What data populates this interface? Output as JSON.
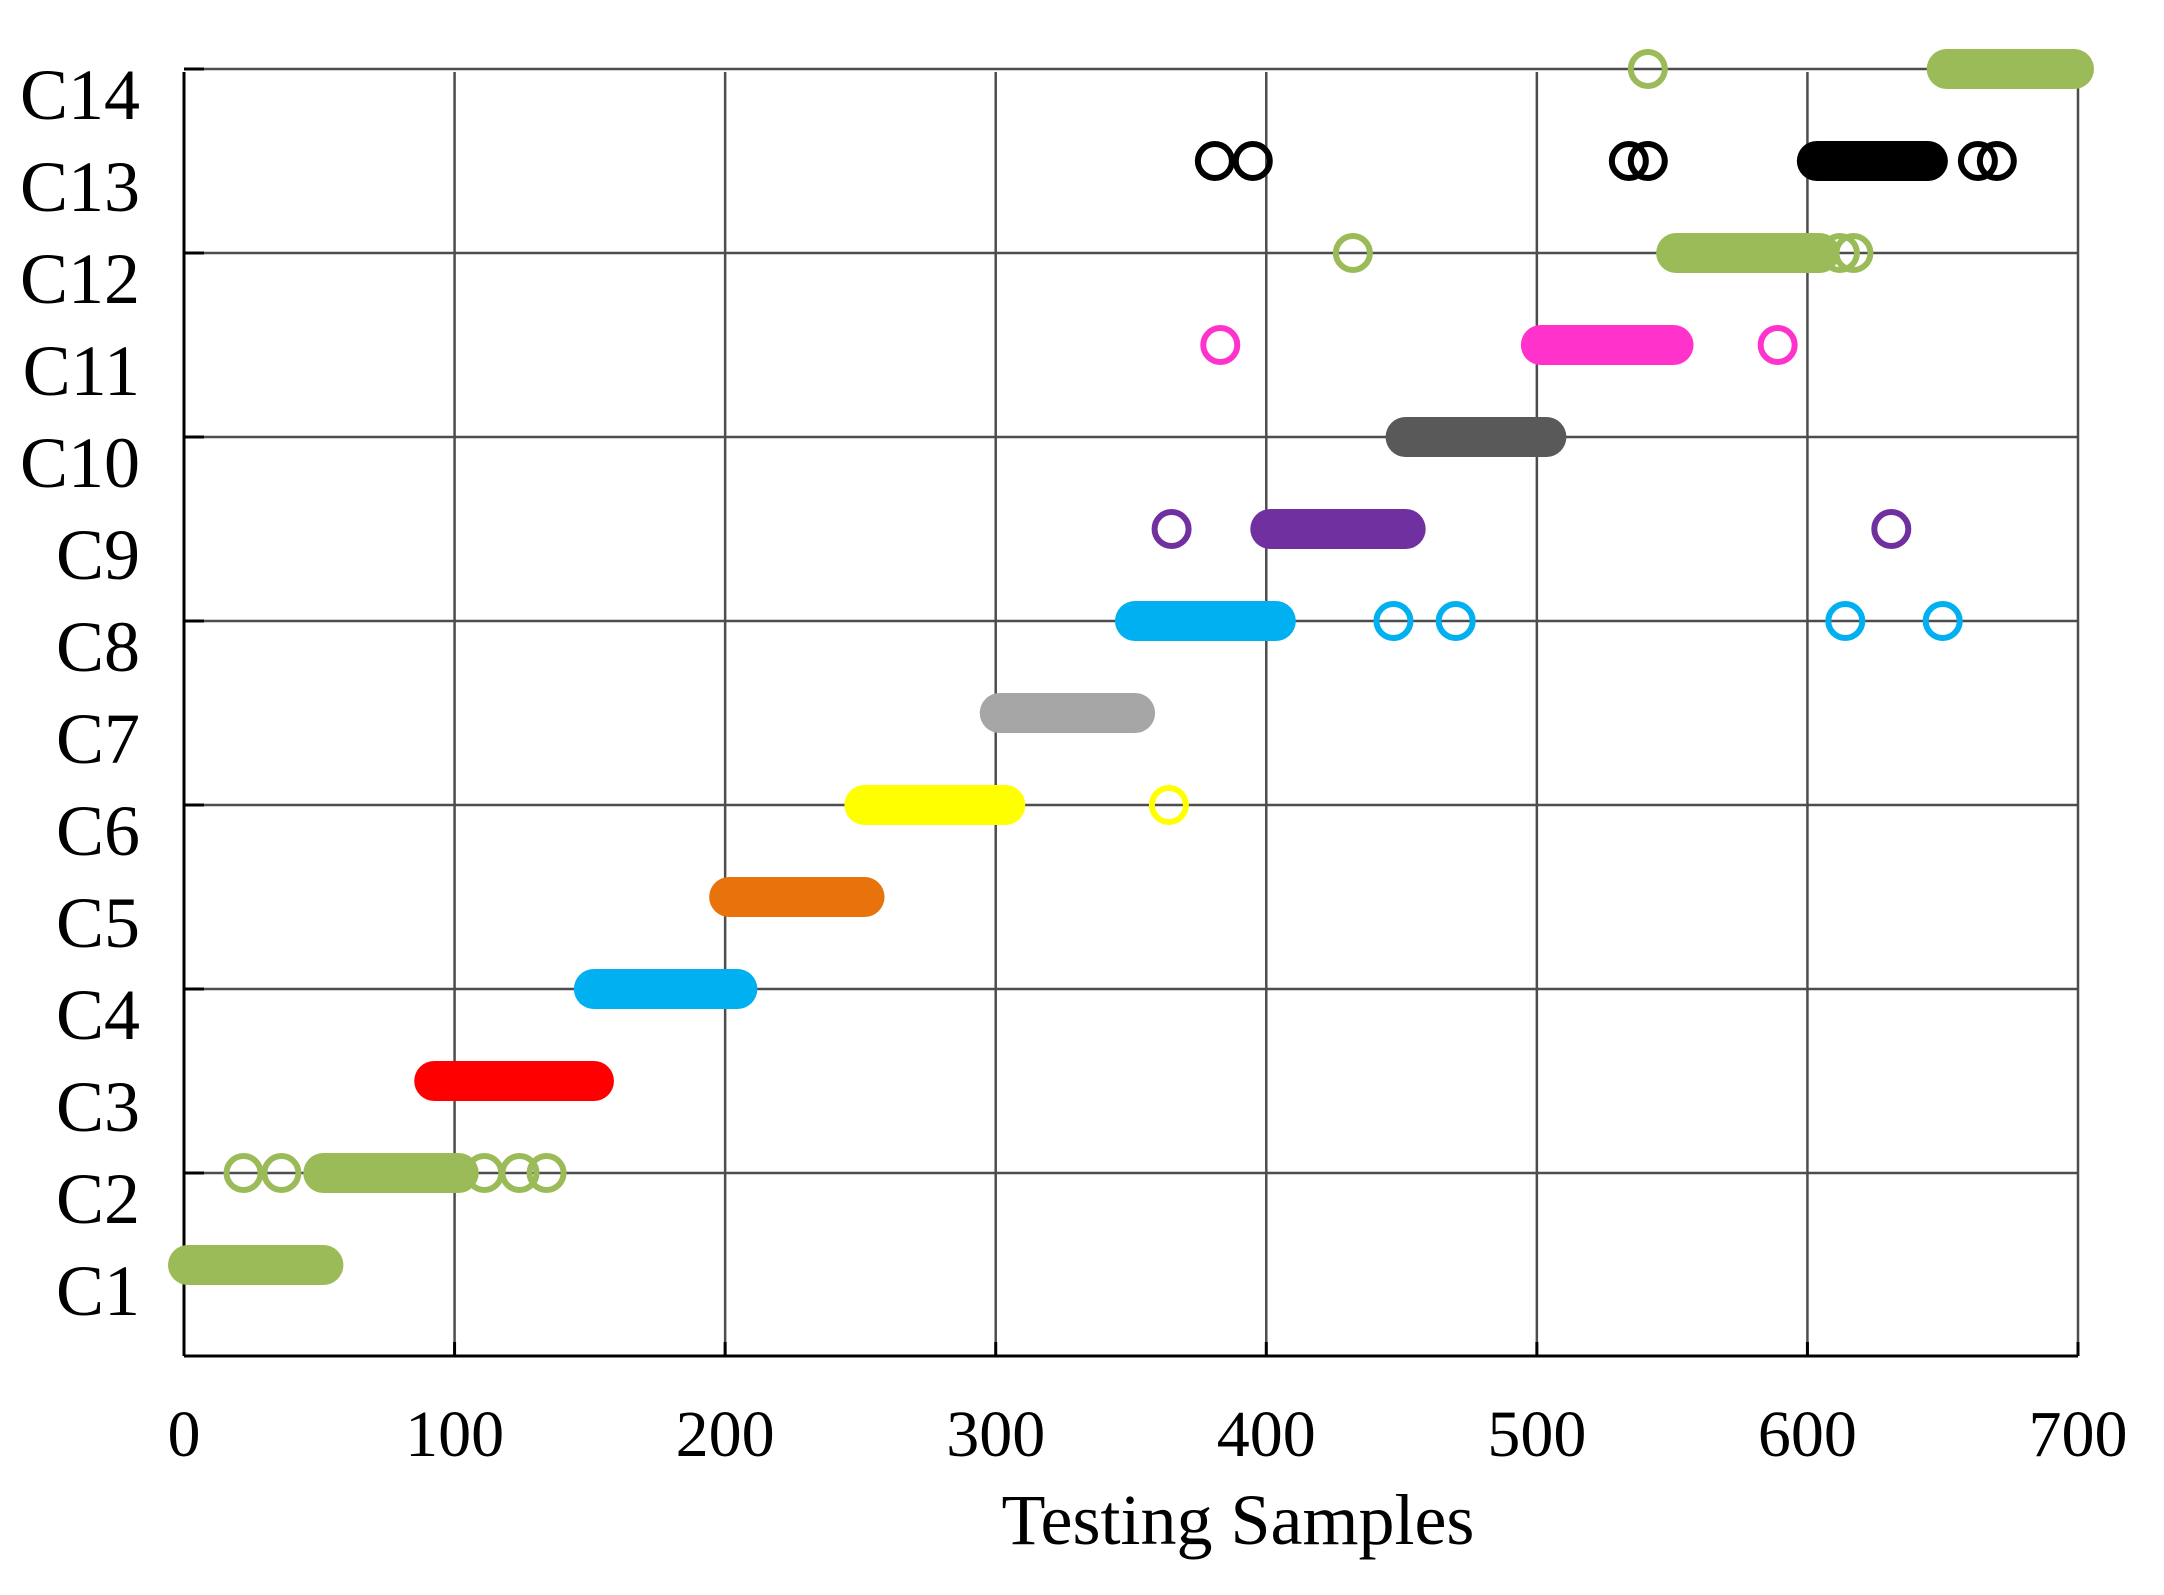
{
  "chart_data": {
    "type": "scatter",
    "title": "",
    "xlabel": "Testing Samples",
    "ylabel": "",
    "xlim": [
      0,
      700
    ],
    "x_ticks": [
      0,
      100,
      200,
      300,
      400,
      500,
      600,
      700
    ],
    "x_tick_labels": [
      "0",
      "100",
      "200",
      "300",
      "400",
      "500",
      "600",
      "700"
    ],
    "categories": [
      "C1",
      "C2",
      "C3",
      "C4",
      "C5",
      "C6",
      "C7",
      "C8",
      "C9",
      "C10",
      "C11",
      "C12",
      "C13",
      "C14"
    ],
    "grid": true,
    "series": [
      {
        "name": "C1",
        "color": "#9bbb59",
        "ranges": [
          [
            0,
            53
          ]
        ],
        "outliers": []
      },
      {
        "name": "C2",
        "color": "#9bbb59",
        "ranges": [
          [
            50,
            103
          ]
        ],
        "outliers": [
          22,
          36,
          111,
          124,
          134
        ]
      },
      {
        "name": "C3",
        "color": "#ff0000",
        "ranges": [
          [
            91,
            153
          ]
        ],
        "outliers": []
      },
      {
        "name": "C4",
        "color": "#00b0f0",
        "ranges": [
          [
            150,
            206
          ]
        ],
        "outliers": []
      },
      {
        "name": "C5",
        "color": "#e8720c",
        "ranges": [
          [
            200,
            253
          ]
        ],
        "outliers": []
      },
      {
        "name": "C6",
        "color": "#ffff00",
        "ranges": [
          [
            250,
            305
          ]
        ],
        "outliers": [
          364
        ]
      },
      {
        "name": "C7",
        "color": "#a6a6a6",
        "ranges": [
          [
            300,
            353
          ]
        ],
        "outliers": []
      },
      {
        "name": "C8",
        "color": "#00b0f0",
        "ranges": [
          [
            350,
            405
          ]
        ],
        "outliers": [
          447,
          470,
          614,
          650
        ]
      },
      {
        "name": "C9",
        "color": "#7030a0",
        "ranges": [
          [
            400,
            453
          ]
        ],
        "outliers": [
          365,
          631
        ]
      },
      {
        "name": "C10",
        "color": "#595959",
        "ranges": [
          [
            450,
            505
          ]
        ],
        "outliers": []
      },
      {
        "name": "C11",
        "color": "#ff33cc",
        "ranges": [
          [
            500,
            552
          ]
        ],
        "outliers": [
          383,
          589
        ]
      },
      {
        "name": "C12",
        "color": "#9bbb59",
        "ranges": [
          [
            550,
            606
          ]
        ],
        "outliers": [
          432,
          612,
          617
        ]
      },
      {
        "name": "C13",
        "color": "#000000",
        "ranges": [
          [
            602,
            646
          ]
        ],
        "outliers": [
          381,
          395,
          534,
          541,
          663,
          670
        ]
      },
      {
        "name": "C14",
        "color": "#9bbb59",
        "ranges": [
          [
            650,
            700
          ]
        ],
        "outliers": [
          541
        ]
      }
    ]
  }
}
